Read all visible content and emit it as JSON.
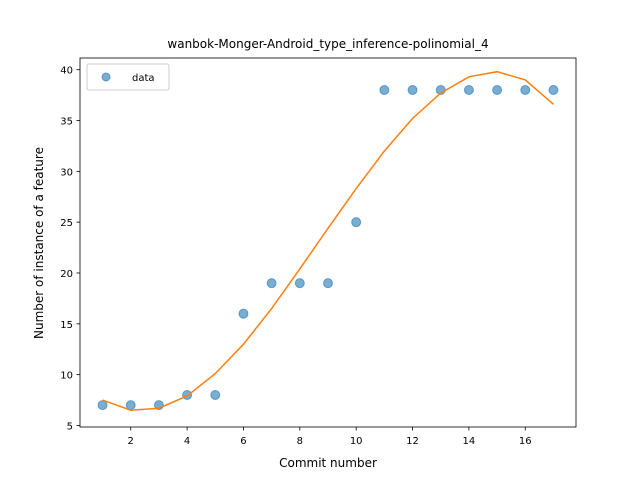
{
  "chart_data": {
    "type": "scatter",
    "title": "wanbok-Monger-Android_type_inference-polinomial_4",
    "xlabel": "Commit number",
    "ylabel": "Number of instance of a feature",
    "xlim": [
      0.2,
      17.8
    ],
    "ylim": [
      4.85,
      41.15
    ],
    "xticks": [
      2,
      4,
      6,
      8,
      10,
      12,
      14,
      16
    ],
    "yticks": [
      5,
      10,
      15,
      20,
      25,
      30,
      35,
      40
    ],
    "grid": false,
    "legend_position": "top-left",
    "series": [
      {
        "name": "data",
        "kind": "scatter",
        "color": "#1f77b4",
        "x": [
          1,
          2,
          3,
          4,
          5,
          6,
          7,
          8,
          9,
          10,
          11,
          12,
          13,
          14,
          15,
          16,
          17
        ],
        "y": [
          7,
          7,
          7,
          8,
          8,
          16,
          19,
          19,
          19,
          25,
          38,
          38,
          38,
          38,
          38,
          38,
          38
        ]
      },
      {
        "kind": "line",
        "color": "#ff7f0e",
        "x": [
          1,
          2,
          3,
          4,
          5,
          6,
          7,
          8,
          9,
          10,
          11,
          12,
          13,
          14,
          15,
          16,
          17
        ],
        "y": [
          7.5,
          6.5,
          6.7,
          7.9,
          10.1,
          13.0,
          16.5,
          20.4,
          24.4,
          28.3,
          32.0,
          35.2,
          37.7,
          39.3,
          39.8,
          39.0,
          36.6
        ]
      }
    ]
  }
}
